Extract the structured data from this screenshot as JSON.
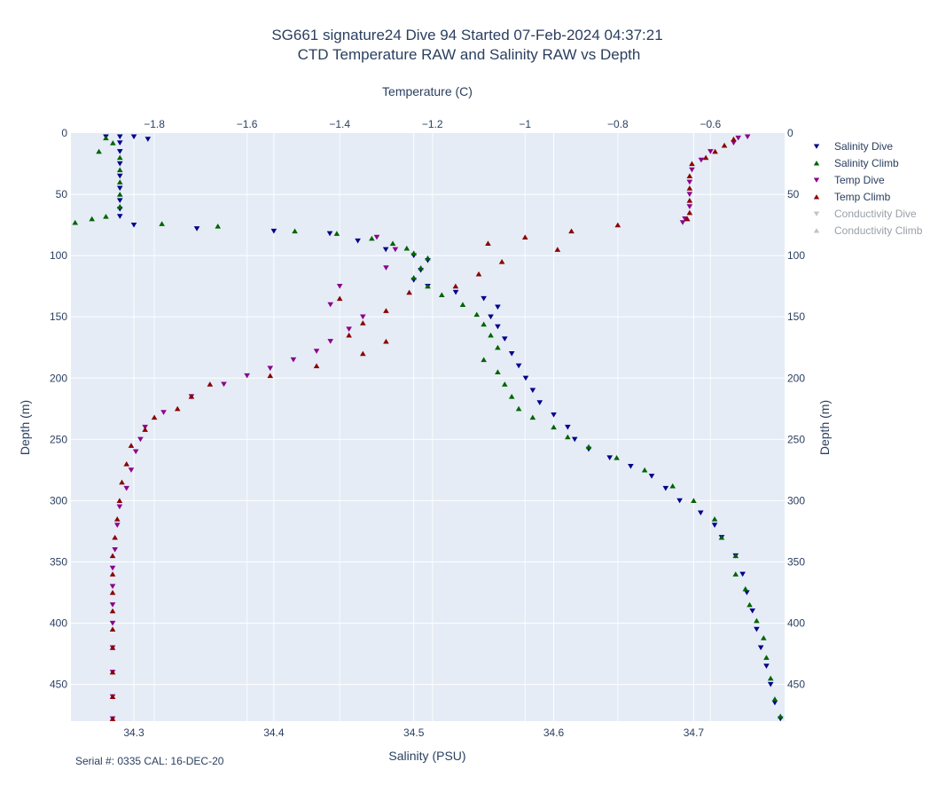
{
  "chart_data": {
    "type": "scatter",
    "title_line1": "SG661 signature24 Dive 94 Started 07-Feb-2024 04:37:21",
    "title_line2": "CTD Temperature RAW and Salinity RAW vs Depth",
    "x_bottom": {
      "label": "Salinity (PSU)",
      "range": [
        34.255,
        34.765
      ],
      "ticks": [
        34.3,
        34.4,
        34.5,
        34.6,
        34.7
      ]
    },
    "x_top": {
      "label": "Temperature (C)",
      "range": [
        -1.98,
        -0.44
      ],
      "ticks": [
        -1.8,
        -1.6,
        -1.4,
        -1.2,
        -1.0,
        -0.8,
        -0.6
      ],
      "tick_labels": [
        "−1.8",
        "−1.6",
        "−1.4",
        "−1.2",
        "−1",
        "−0.8",
        "−0.6"
      ]
    },
    "y": {
      "label": "Depth (m)",
      "range": [
        0,
        480
      ],
      "reversed": true,
      "ticks": [
        0,
        50,
        100,
        150,
        200,
        250,
        300,
        350,
        400,
        450
      ]
    },
    "grid": true,
    "legend_position": "right",
    "footnote": "Serial #: 0335  CAL: 16-DEC-20",
    "series": [
      {
        "name": "Salinity Dive",
        "axis": "salinity",
        "marker": "triangle-down",
        "color": "#00008b",
        "visible": true,
        "points": [
          [
            34.28,
            3
          ],
          [
            34.29,
            3
          ],
          [
            34.3,
            3
          ],
          [
            34.31,
            5
          ],
          [
            34.29,
            8
          ],
          [
            34.29,
            15
          ],
          [
            34.29,
            25
          ],
          [
            34.29,
            35
          ],
          [
            34.29,
            45
          ],
          [
            34.29,
            55
          ],
          [
            34.29,
            62
          ],
          [
            34.29,
            68
          ],
          [
            34.3,
            75
          ],
          [
            34.345,
            78
          ],
          [
            34.4,
            80
          ],
          [
            34.44,
            82
          ],
          [
            34.46,
            88
          ],
          [
            34.48,
            95
          ],
          [
            34.5,
            100
          ],
          [
            34.51,
            104
          ],
          [
            34.505,
            112
          ],
          [
            34.5,
            120
          ],
          [
            34.51,
            125
          ],
          [
            34.53,
            130
          ],
          [
            34.55,
            135
          ],
          [
            34.56,
            142
          ],
          [
            34.555,
            150
          ],
          [
            34.56,
            158
          ],
          [
            34.565,
            168
          ],
          [
            34.57,
            180
          ],
          [
            34.575,
            190
          ],
          [
            34.58,
            200
          ],
          [
            34.585,
            210
          ],
          [
            34.59,
            220
          ],
          [
            34.6,
            230
          ],
          [
            34.61,
            240
          ],
          [
            34.615,
            250
          ],
          [
            34.625,
            258
          ],
          [
            34.64,
            265
          ],
          [
            34.655,
            272
          ],
          [
            34.67,
            280
          ],
          [
            34.68,
            290
          ],
          [
            34.69,
            300
          ],
          [
            34.705,
            310
          ],
          [
            34.715,
            320
          ],
          [
            34.72,
            330
          ],
          [
            34.73,
            345
          ],
          [
            34.735,
            360
          ],
          [
            34.738,
            375
          ],
          [
            34.742,
            390
          ],
          [
            34.745,
            405
          ],
          [
            34.748,
            420
          ],
          [
            34.752,
            435
          ],
          [
            34.755,
            450
          ],
          [
            34.758,
            465
          ],
          [
            34.762,
            478
          ]
        ]
      },
      {
        "name": "Salinity Climb",
        "axis": "salinity",
        "marker": "triangle-up",
        "color": "#006400",
        "visible": true,
        "points": [
          [
            34.28,
            4
          ],
          [
            34.285,
            8
          ],
          [
            34.275,
            15
          ],
          [
            34.29,
            20
          ],
          [
            34.29,
            30
          ],
          [
            34.29,
            40
          ],
          [
            34.29,
            50
          ],
          [
            34.29,
            60
          ],
          [
            34.28,
            68
          ],
          [
            34.27,
            70
          ],
          [
            34.258,
            73
          ],
          [
            34.32,
            74
          ],
          [
            34.36,
            76
          ],
          [
            34.415,
            80
          ],
          [
            34.445,
            82
          ],
          [
            34.47,
            86
          ],
          [
            34.485,
            90
          ],
          [
            34.495,
            94
          ],
          [
            34.5,
            98
          ],
          [
            34.51,
            102
          ],
          [
            34.505,
            110
          ],
          [
            34.5,
            118
          ],
          [
            34.51,
            125
          ],
          [
            34.52,
            132
          ],
          [
            34.535,
            140
          ],
          [
            34.545,
            148
          ],
          [
            34.55,
            156
          ],
          [
            34.555,
            165
          ],
          [
            34.56,
            175
          ],
          [
            34.55,
            185
          ],
          [
            34.56,
            195
          ],
          [
            34.565,
            205
          ],
          [
            34.57,
            215
          ],
          [
            34.575,
            225
          ],
          [
            34.585,
            232
          ],
          [
            34.6,
            240
          ],
          [
            34.61,
            248
          ],
          [
            34.625,
            256
          ],
          [
            34.645,
            265
          ],
          [
            34.665,
            275
          ],
          [
            34.685,
            288
          ],
          [
            34.7,
            300
          ],
          [
            34.715,
            315
          ],
          [
            34.72,
            330
          ],
          [
            34.73,
            345
          ],
          [
            34.73,
            360
          ],
          [
            34.737,
            372
          ],
          [
            34.74,
            385
          ],
          [
            34.745,
            398
          ],
          [
            34.75,
            412
          ],
          [
            34.752,
            428
          ],
          [
            34.755,
            445
          ],
          [
            34.758,
            462
          ],
          [
            34.762,
            476
          ]
        ]
      },
      {
        "name": "Temp Dive",
        "axis": "temperature",
        "marker": "triangle-down",
        "color": "#8b008b",
        "visible": true,
        "points": [
          [
            -0.52,
            3
          ],
          [
            -0.54,
            4
          ],
          [
            -0.55,
            8
          ],
          [
            -0.6,
            15
          ],
          [
            -0.62,
            22
          ],
          [
            -0.64,
            30
          ],
          [
            -0.645,
            40
          ],
          [
            -0.645,
            50
          ],
          [
            -0.645,
            60
          ],
          [
            -0.655,
            70
          ],
          [
            -0.66,
            73
          ],
          [
            -1.32,
            85
          ],
          [
            -1.28,
            95
          ],
          [
            -1.3,
            110
          ],
          [
            -1.4,
            125
          ],
          [
            -1.42,
            140
          ],
          [
            -1.35,
            150
          ],
          [
            -1.38,
            160
          ],
          [
            -1.42,
            170
          ],
          [
            -1.45,
            178
          ],
          [
            -1.5,
            185
          ],
          [
            -1.55,
            192
          ],
          [
            -1.6,
            198
          ],
          [
            -1.65,
            205
          ],
          [
            -1.72,
            215
          ],
          [
            -1.78,
            228
          ],
          [
            -1.82,
            240
          ],
          [
            -1.83,
            250
          ],
          [
            -1.84,
            260
          ],
          [
            -1.85,
            275
          ],
          [
            -1.86,
            290
          ],
          [
            -1.875,
            305
          ],
          [
            -1.88,
            320
          ],
          [
            -1.885,
            340
          ],
          [
            -1.89,
            355
          ],
          [
            -1.89,
            370
          ],
          [
            -1.89,
            385
          ],
          [
            -1.89,
            400
          ],
          [
            -1.89,
            420
          ],
          [
            -1.89,
            440
          ],
          [
            -1.89,
            460
          ],
          [
            -1.89,
            478
          ]
        ]
      },
      {
        "name": "Temp Climb",
        "axis": "temperature",
        "marker": "triangle-up",
        "color": "#8b0000",
        "visible": true,
        "points": [
          [
            -0.55,
            5
          ],
          [
            -0.57,
            10
          ],
          [
            -0.59,
            15
          ],
          [
            -0.61,
            20
          ],
          [
            -0.64,
            25
          ],
          [
            -0.645,
            35
          ],
          [
            -0.645,
            45
          ],
          [
            -0.645,
            55
          ],
          [
            -0.645,
            65
          ],
          [
            -0.65,
            70
          ],
          [
            -0.8,
            75
          ],
          [
            -0.9,
            80
          ],
          [
            -1.0,
            85
          ],
          [
            -1.08,
            90
          ],
          [
            -0.93,
            95
          ],
          [
            -1.05,
            105
          ],
          [
            -1.1,
            115
          ],
          [
            -1.15,
            125
          ],
          [
            -1.25,
            130
          ],
          [
            -1.4,
            135
          ],
          [
            -1.3,
            145
          ],
          [
            -1.35,
            155
          ],
          [
            -1.38,
            165
          ],
          [
            -1.3,
            170
          ],
          [
            -1.35,
            180
          ],
          [
            -1.45,
            190
          ],
          [
            -1.55,
            198
          ],
          [
            -1.68,
            205
          ],
          [
            -1.72,
            215
          ],
          [
            -1.75,
            225
          ],
          [
            -1.8,
            232
          ],
          [
            -1.82,
            242
          ],
          [
            -1.85,
            255
          ],
          [
            -1.86,
            270
          ],
          [
            -1.87,
            285
          ],
          [
            -1.875,
            300
          ],
          [
            -1.88,
            315
          ],
          [
            -1.885,
            330
          ],
          [
            -1.89,
            345
          ],
          [
            -1.89,
            360
          ],
          [
            -1.89,
            375
          ],
          [
            -1.89,
            390
          ],
          [
            -1.89,
            405
          ],
          [
            -1.89,
            420
          ],
          [
            -1.89,
            440
          ],
          [
            -1.89,
            460
          ],
          [
            -1.89,
            478
          ]
        ]
      },
      {
        "name": "Conductivity Dive",
        "marker": "triangle-down",
        "color": "#c0c4cc",
        "visible": false,
        "points": []
      },
      {
        "name": "Conductivity Climb",
        "marker": "triangle-up",
        "color": "#c0c4cc",
        "visible": false,
        "points": []
      }
    ]
  }
}
